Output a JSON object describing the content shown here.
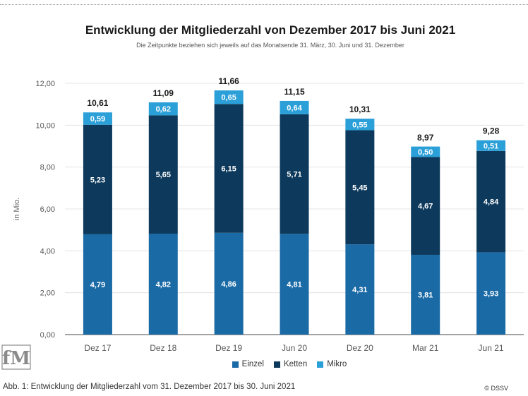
{
  "title": "Entwicklung der Mitgliederzahl von Dezember 2017 bis Juni 2021",
  "subtitle": "Die Zeitpunkte beziehen sich jeweils auf das Monatsende 31. März, 30. Juni und 31. Dezember",
  "caption": "Abb. 1: Entwicklung der Mitgliederzahl vom 31. Dezember 2017 bis 30. Juni 2021",
  "copyright": "© DSSV",
  "logo_text": "fM",
  "chart_data": {
    "type": "bar",
    "stacked": true,
    "categories": [
      "Dez 17",
      "Dez 18",
      "Dez 19",
      "Jun 20",
      "Dez 20",
      "Mar 21",
      "Jun 21"
    ],
    "series": [
      {
        "name": "Einzel",
        "color": "#1a6aa6",
        "values": [
          4.79,
          4.82,
          4.86,
          4.81,
          4.31,
          3.81,
          3.93
        ],
        "labels": [
          "4,79",
          "4,82",
          "4,86",
          "4,81",
          "4,31",
          "3,81",
          "3,93"
        ]
      },
      {
        "name": "Ketten",
        "color": "#0d3a5c",
        "values": [
          5.23,
          5.65,
          6.15,
          5.71,
          5.45,
          4.67,
          4.84
        ],
        "labels": [
          "5,23",
          "5,65",
          "6,15",
          "5,71",
          "5,45",
          "4,67",
          "4,84"
        ]
      },
      {
        "name": "Mikro",
        "color": "#2a9fd8",
        "values": [
          0.59,
          0.62,
          0.65,
          0.64,
          0.55,
          0.5,
          0.51
        ],
        "labels": [
          "0,59",
          "0,62",
          "0,65",
          "0,64",
          "0,55",
          "0,50",
          "0,51"
        ]
      }
    ],
    "totals": [
      10.61,
      11.09,
      11.66,
      11.15,
      10.31,
      8.97,
      9.28
    ],
    "total_labels": [
      "10,61",
      "11,09",
      "11,66",
      "11,15",
      "10,31",
      "8,97",
      "9,28"
    ],
    "ylabel": "in Mio.",
    "ylim": [
      0,
      12
    ],
    "yticks": [
      0,
      2,
      4,
      6,
      8,
      10,
      12
    ],
    "ytick_labels": [
      "0,00",
      "2,00",
      "4,00",
      "6,00",
      "8,00",
      "10,00",
      "12,00"
    ],
    "grid": true,
    "legend_position": "bottom"
  }
}
